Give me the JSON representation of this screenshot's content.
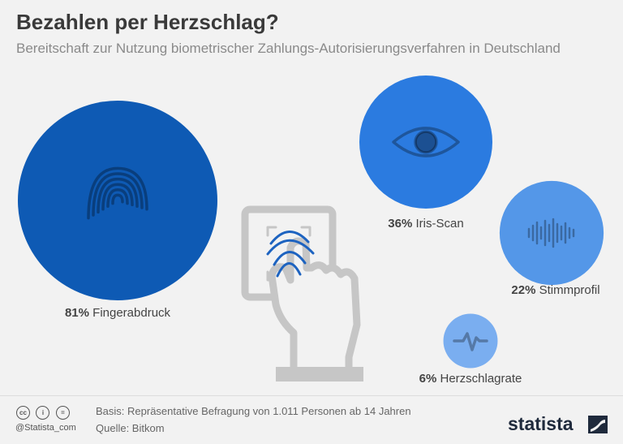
{
  "title": "Bezahlen per Herzschlag?",
  "subtitle": "Bereitschaft zur Nutzung biometrischer Zahlungs-Autorisierungsverfahren in Deutschland",
  "chart_data": {
    "type": "bubble",
    "title": "Bezahlen per Herzschlag?",
    "subtitle": "Bereitschaft zur Nutzung biometrischer Zahlungs-Autorisierungsverfahren in Deutschland",
    "unit": "%",
    "categories": [
      "Fingerabdruck",
      "Iris-Scan",
      "Stimmprofil",
      "Herzschlagrate"
    ],
    "values": [
      81,
      36,
      22,
      6
    ],
    "labels": [
      "81%",
      "36%",
      "22%",
      "6%"
    ],
    "colors": [
      "#0e5ab4",
      "#2b7be0",
      "#5497e8",
      "#7aaef0"
    ],
    "icons": [
      "fingerprint-icon",
      "eye-icon",
      "soundwave-icon",
      "heartbeat-icon"
    ]
  },
  "footer": {
    "basis": "Basis: Repräsentative Befragung von 1.011 Personen ab 14 Jahren",
    "source": "Quelle: Bitkom",
    "handle": "@Statista_com",
    "brand": "statista",
    "license_icons": [
      "cc",
      "i",
      "="
    ]
  }
}
